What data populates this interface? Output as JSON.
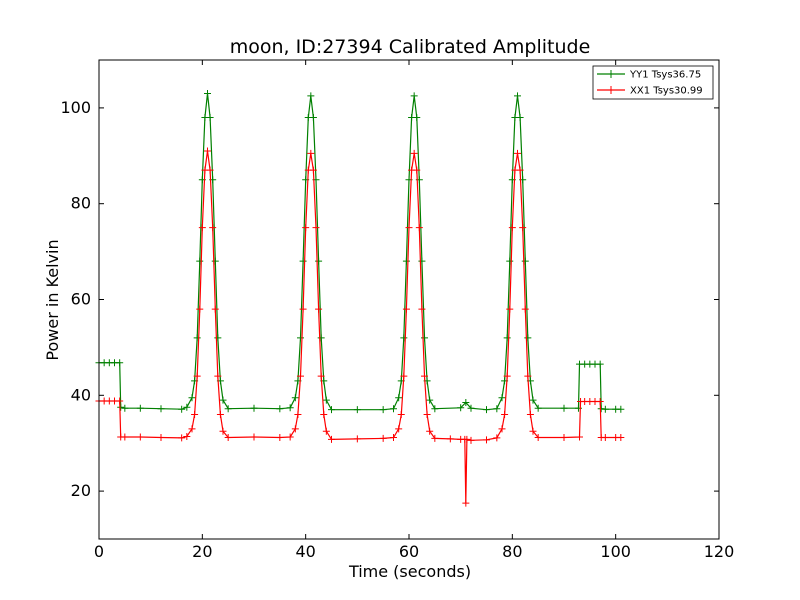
{
  "chart_data": {
    "type": "line",
    "title": "moon, ID:27394 Calibrated Amplitude",
    "xlabel": "Time (seconds)",
    "ylabel": "Power in Kelvin",
    "xlim": [
      0,
      120
    ],
    "ylim": [
      10,
      110
    ],
    "xticks": [
      0,
      20,
      40,
      60,
      80,
      100,
      120
    ],
    "yticks": [
      20,
      40,
      60,
      80,
      100
    ],
    "xtick_labels": [
      "0",
      "20",
      "40",
      "60",
      "80",
      "100",
      "120"
    ],
    "ytick_labels": [
      "20",
      "40",
      "60",
      "80",
      "100"
    ],
    "grid": false,
    "legend_position": "top-right",
    "marker": "+",
    "series": [
      {
        "name": "YY1 Tsys36.75",
        "color": "#008000",
        "x": [
          0,
          1,
          2,
          3,
          4,
          4.2,
          5,
          8,
          12,
          16,
          17,
          18,
          18.5,
          19,
          19.5,
          20,
          20.5,
          21,
          21.5,
          22,
          22.5,
          23,
          23.5,
          24,
          25,
          30,
          35,
          37,
          38,
          38.5,
          39,
          39.5,
          40,
          40.5,
          41,
          41.5,
          42,
          42.5,
          43,
          43.5,
          44,
          45,
          50,
          55,
          57,
          58,
          58.5,
          59,
          59.5,
          60,
          60.5,
          61,
          61.5,
          62,
          62.5,
          63,
          63.5,
          64,
          65,
          70,
          71,
          72,
          75,
          77,
          78,
          78.5,
          79,
          79.5,
          80,
          80.5,
          81,
          81.5,
          82,
          82.5,
          83,
          83.5,
          84,
          85,
          90,
          92.8,
          93,
          94,
          95,
          96,
          97,
          97.2,
          98,
          100,
          101
        ],
        "y": [
          46.8,
          46.8,
          46.8,
          46.8,
          46.8,
          37.5,
          37.3,
          37.3,
          37.2,
          37.1,
          37.5,
          39.5,
          43,
          52,
          68,
          85,
          98,
          103,
          98,
          85,
          68,
          52,
          43,
          39,
          37.2,
          37.3,
          37.2,
          37.4,
          39.5,
          43,
          52,
          68,
          85,
          98,
          102.5,
          98,
          85,
          68,
          52,
          43,
          39,
          37,
          37.0,
          37.0,
          37.2,
          39.5,
          43,
          52,
          68,
          85,
          98,
          102.5,
          98,
          85,
          68,
          52,
          43,
          39,
          37.2,
          37.4,
          38.5,
          37.3,
          37.0,
          37.2,
          39.5,
          43,
          52,
          68,
          85,
          98,
          102.5,
          98,
          85,
          68,
          52,
          43,
          39,
          37.3,
          37.3,
          37.3,
          46.5,
          46.5,
          46.5,
          46.5,
          46.5,
          37.2,
          37.1,
          37.1,
          37.1
        ]
      },
      {
        "name": "XX1 Tsys30.99",
        "color": "#ff0000",
        "x": [
          0,
          1,
          2,
          3,
          4,
          4.2,
          5,
          8,
          12,
          16,
          17,
          18,
          18.5,
          19,
          19.5,
          20,
          20.5,
          21,
          21.5,
          22,
          22.5,
          23,
          23.5,
          24,
          25,
          30,
          35,
          37,
          38,
          38.5,
          39,
          39.5,
          40,
          40.5,
          41,
          41.5,
          42,
          42.5,
          43,
          43.5,
          44,
          45,
          50,
          55,
          57,
          58,
          58.5,
          59,
          59.5,
          60,
          60.5,
          61,
          61.5,
          62,
          62.5,
          63,
          63.5,
          64,
          65,
          68,
          70,
          70.8,
          71,
          71.2,
          72,
          75,
          77,
          78,
          78.5,
          79,
          79.5,
          80,
          80.5,
          81,
          81.5,
          82,
          82.5,
          83,
          83.5,
          84,
          85,
          90,
          93,
          93.2,
          94,
          95,
          96,
          97,
          97.2,
          98,
          100,
          101
        ],
        "y": [
          38.8,
          38.8,
          38.8,
          38.8,
          38.8,
          31.3,
          31.3,
          31.3,
          31.2,
          31.1,
          31.4,
          33,
          36,
          44,
          58,
          75,
          87,
          91,
          87,
          75,
          58,
          44,
          36,
          32.5,
          31.2,
          31.3,
          31.2,
          31.3,
          33,
          36,
          44,
          58,
          75,
          87,
          90.5,
          87,
          75,
          58,
          44,
          36,
          32.5,
          30.8,
          30.9,
          31.0,
          31.2,
          33,
          36,
          44,
          58,
          75,
          87,
          90.5,
          87,
          75,
          58,
          44,
          36,
          32.5,
          31.0,
          30.9,
          30.8,
          30.8,
          17.5,
          30.8,
          30.6,
          30.7,
          31.1,
          33,
          36,
          44,
          58,
          75,
          87,
          90.5,
          87,
          75,
          58,
          44,
          36,
          32.5,
          31.2,
          31.2,
          31.3,
          38.7,
          38.7,
          38.7,
          38.7,
          38.7,
          31.2,
          31.2,
          31.2,
          31.2
        ]
      }
    ]
  }
}
